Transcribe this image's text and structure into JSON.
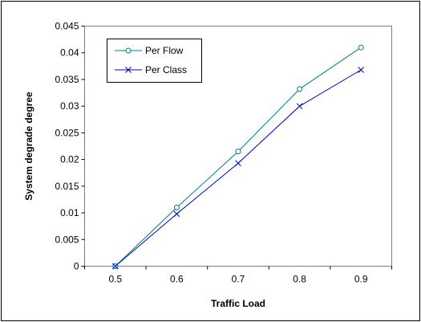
{
  "chart_data": {
    "type": "line",
    "title": "",
    "xlabel": "Traffic Load",
    "ylabel": "System degrade degree",
    "xlim": [
      0.45,
      0.95
    ],
    "ylim": [
      0,
      0.045
    ],
    "x_ticks": [
      "0.5",
      "0.6",
      "0.7",
      "0.8",
      "0.9"
    ],
    "y_ticks": [
      "0",
      "0.005",
      "0.01",
      "0.015",
      "0.02",
      "0.025",
      "0.03",
      "0.035",
      "0.04",
      "0.045"
    ],
    "grid": false,
    "legend_position": "top-left",
    "x": [
      0.5,
      0.6,
      0.7,
      0.8,
      0.9
    ],
    "series": [
      {
        "name": "Per Flow",
        "values": [
          0,
          0.011,
          0.0215,
          0.0332,
          0.041
        ],
        "color": "#008080",
        "marker": "circle"
      },
      {
        "name": "Per Class",
        "values": [
          0,
          0.0098,
          0.0193,
          0.03,
          0.0368
        ],
        "color": "#0000CC",
        "marker": "x"
      }
    ]
  }
}
